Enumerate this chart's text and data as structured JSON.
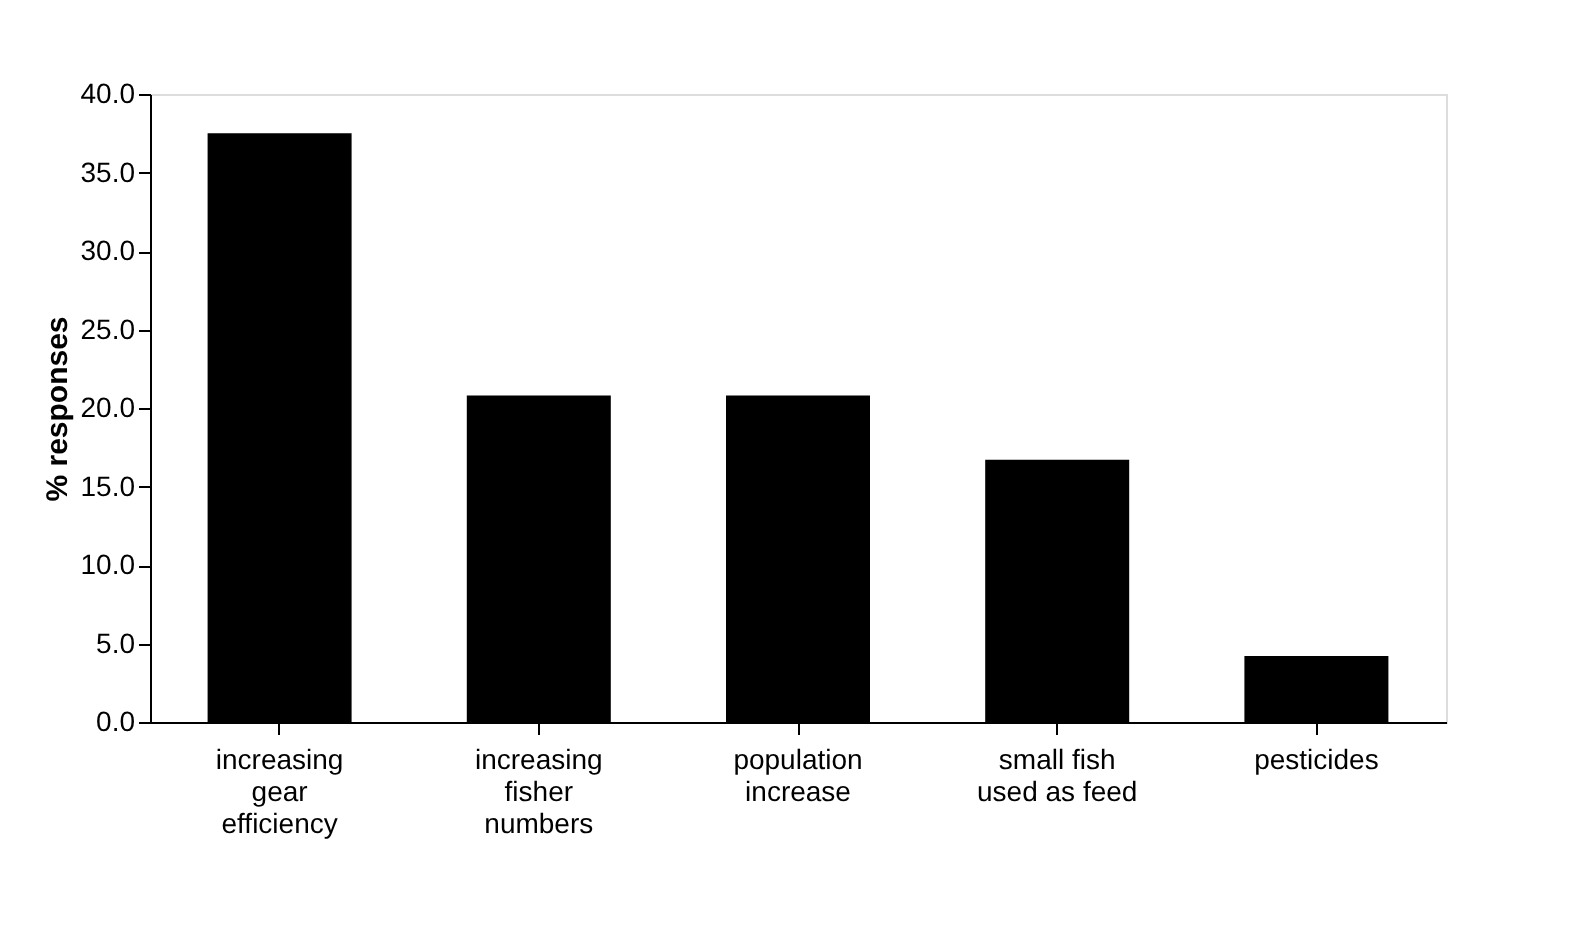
{
  "chart_data": {
    "type": "bar",
    "ylabel": "% responses",
    "categories": [
      "increasing gear efficiency",
      "increasing fisher numbers",
      "population increase",
      "small fish used as feed",
      "pesticides"
    ],
    "values": [
      37.5,
      20.8,
      20.8,
      16.7,
      4.2
    ],
    "color": "#000000",
    "ylim": [
      0,
      40
    ],
    "yticks": [
      {
        "value": 0,
        "label": "0.0"
      },
      {
        "value": 5,
        "label": "5.0"
      },
      {
        "value": 10,
        "label": "10.0"
      },
      {
        "value": 15,
        "label": "15.0"
      },
      {
        "value": 20,
        "label": "20.0"
      },
      {
        "value": 25,
        "label": "25.0"
      },
      {
        "value": 30,
        "label": "30.0"
      },
      {
        "value": 35,
        "label": "35.0"
      },
      {
        "value": 40,
        "label": "40.0"
      }
    ],
    "grid": false
  }
}
